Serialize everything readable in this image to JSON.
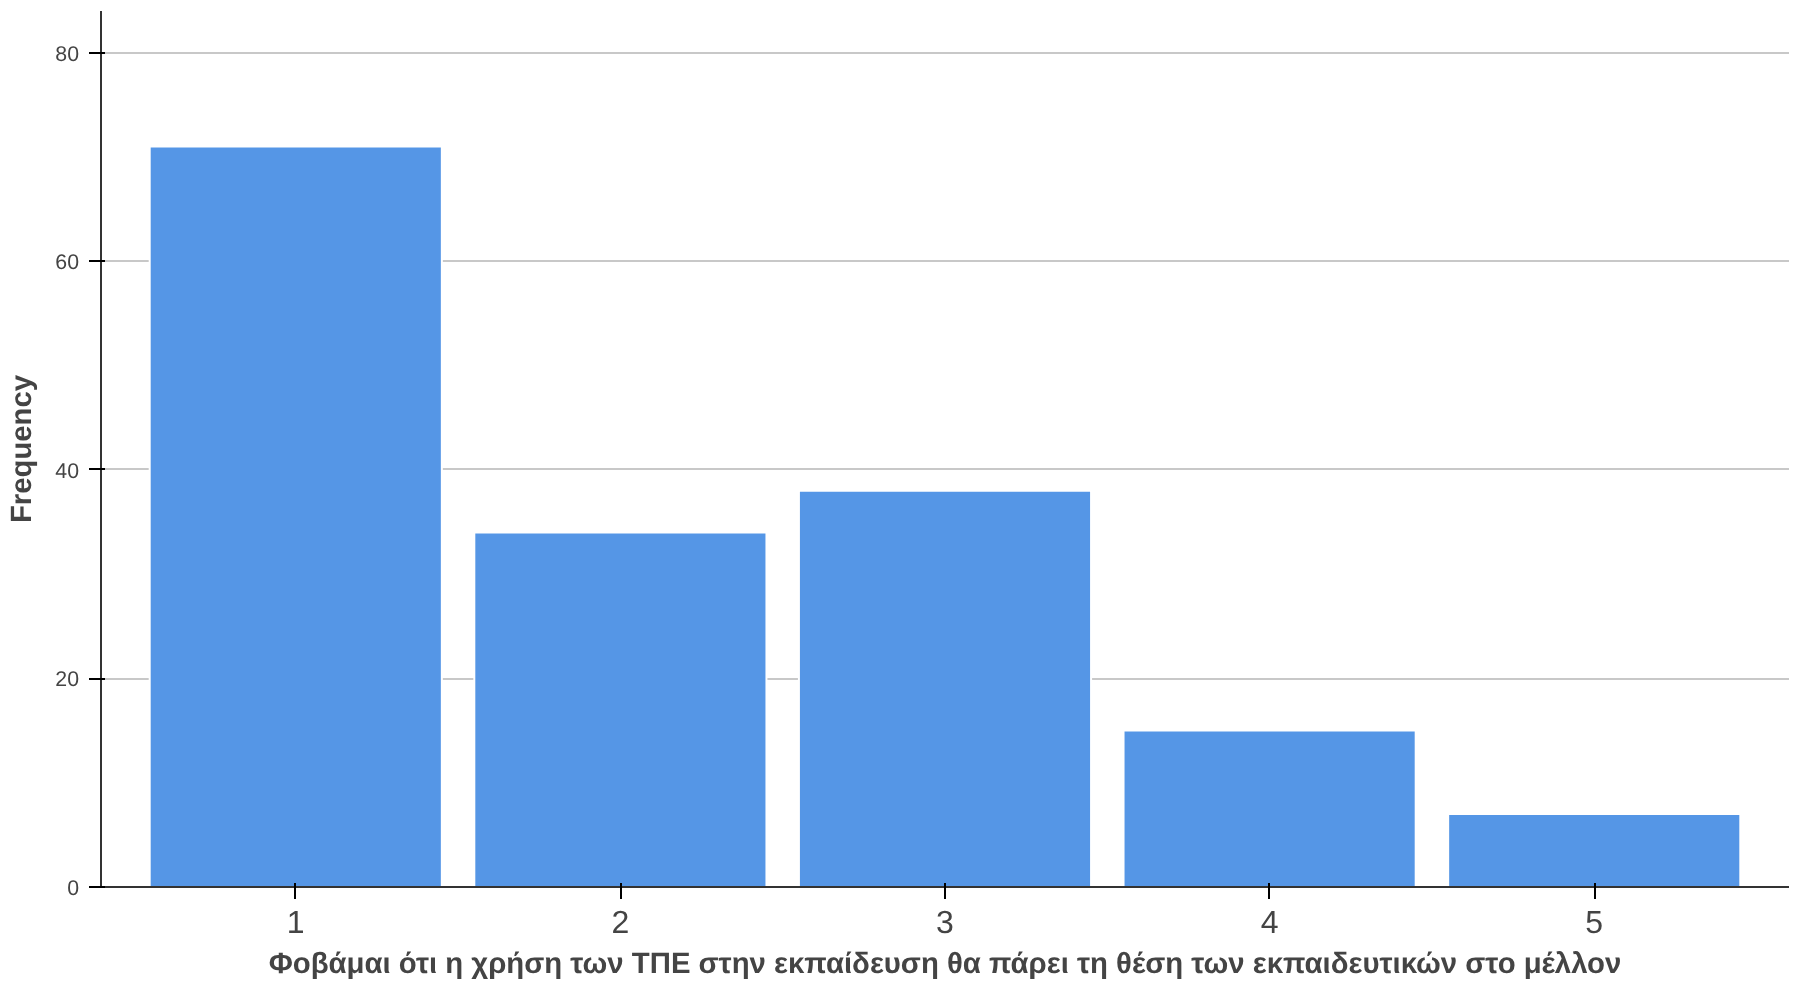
{
  "chart_data": {
    "type": "bar",
    "xlabel": "Φοβάμαι ότι η χρήση των ΤΠΕ στην εκπαίδευση θα πάρει τη θέση των εκπαιδευτικών στο μέλλον",
    "ylabel": "Frequency",
    "categories": [
      "1",
      "2",
      "3",
      "4",
      "5"
    ],
    "values": [
      71,
      34,
      38,
      15,
      7
    ],
    "color": "#5596e6",
    "ylim": [
      0,
      84
    ],
    "yticks": [
      0,
      20,
      40,
      60,
      80
    ],
    "grid": "y"
  }
}
